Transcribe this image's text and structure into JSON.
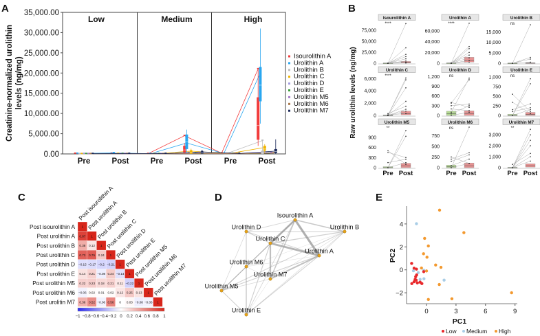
{
  "panel_labels": [
    "A",
    "B",
    "C",
    "D",
    "E"
  ],
  "chart_data": [
    {
      "panel": "A",
      "type": "box+line",
      "ylabel_lines": [
        "Creatinine-normalized urolithin",
        "levels (ng/mg)"
      ],
      "ylim": [
        0,
        35000
      ],
      "yticks": [
        0,
        5000,
        10000,
        15000,
        20000,
        25000,
        30000,
        35000
      ],
      "ytick_labels": [
        "0.00",
        "5,000.00",
        "10,000.00",
        "15,000.00",
        "20,000.00",
        "25,000.00",
        "30,000.00",
        "35,000.00"
      ],
      "facets": [
        "Low",
        "Medium",
        "High"
      ],
      "xticks": [
        "Pre",
        "Post"
      ],
      "series": [
        {
          "name": "Isourolithin A",
          "color": "#f23b3b",
          "means": [
            100,
            150,
            50,
            4500,
            200,
            21000
          ]
        },
        {
          "name": "Urolithin A",
          "color": "#2aa7f0",
          "means": [
            100,
            250,
            50,
            2700,
            100,
            20000
          ]
        },
        {
          "name": "Urolithin B",
          "color": "#bdbdbd",
          "means": [
            0,
            50,
            0,
            300,
            50,
            3300
          ]
        },
        {
          "name": "Urolithin C",
          "color": "#f0b400",
          "means": [
            20,
            80,
            20,
            700,
            50,
            1600
          ]
        },
        {
          "name": "Urolithin D",
          "color": "#a29bdf",
          "means": [
            50,
            50,
            50,
            150,
            50,
            200
          ]
        },
        {
          "name": "Urolithin E",
          "color": "#3a9c3a",
          "means": [
            30,
            60,
            30,
            100,
            50,
            150
          ]
        },
        {
          "name": "Urolithin M5",
          "color": "#a77bc9",
          "means": [
            20,
            40,
            20,
            150,
            50,
            300
          ]
        },
        {
          "name": "Urolithin M6",
          "color": "#a9784a",
          "means": [
            20,
            40,
            20,
            100,
            40,
            200
          ]
        },
        {
          "name": "Urolithin M7",
          "color": "#1c2a5a",
          "means": [
            50,
            80,
            80,
            500,
            100,
            700
          ]
        }
      ],
      "boxes": [
        {
          "group": 3,
          "series": 0,
          "lo": 100,
          "q1": 400,
          "median": 1000,
          "q3": 2000,
          "hi": 2700
        },
        {
          "group": 3,
          "series": 1,
          "lo": 300,
          "q1": 1200,
          "median": 3000,
          "q3": 4800,
          "hi": 6000
        },
        {
          "group": 3,
          "series": 3,
          "lo": 0,
          "q1": 100,
          "median": 300,
          "q3": 800,
          "hi": 1300
        },
        {
          "group": 3,
          "series": 8,
          "lo": 0,
          "q1": 100,
          "median": 300,
          "q3": 600,
          "hi": 1000
        },
        {
          "group": 5,
          "series": 0,
          "lo": 2000,
          "q1": 3500,
          "median": 7000,
          "q3": 14000,
          "hi": 21000
        },
        {
          "group": 5,
          "series": 1,
          "lo": 7500,
          "q1": 13000,
          "median": 17000,
          "q3": 21500,
          "hi": 31000
        },
        {
          "group": 5,
          "series": 2,
          "lo": 0,
          "q1": 0,
          "median": 200,
          "q3": 800,
          "hi": 3300
        },
        {
          "group": 5,
          "series": 3,
          "lo": 300,
          "q1": 800,
          "median": 1200,
          "q3": 2000,
          "hi": 2400
        },
        {
          "group": 5,
          "series": 8,
          "lo": 0,
          "q1": 200,
          "median": 600,
          "q3": 1200,
          "hi": 3600
        }
      ]
    },
    {
      "panel": "B",
      "type": "box+paired-lines",
      "ylabel": "Raw urolithin levels (ng/mg)",
      "xticks": [
        "Pre",
        "Post"
      ],
      "pre_color": "#a9d47f",
      "post_color": "#e57f7f",
      "panels": [
        {
          "title": "Isourolithin A",
          "sig": "****",
          "yticks": [
            0,
            25000,
            50000,
            75000
          ],
          "ymax": 92000,
          "pre": [
            0,
            100,
            300
          ],
          "post": [
            500,
            2000,
            4000
          ],
          "pairs": [
            [
              0,
              90000
            ],
            [
              0,
              35000
            ],
            [
              0,
              20000
            ],
            [
              0,
              15000
            ],
            [
              0,
              10000
            ],
            [
              0,
              5000
            ],
            [
              0,
              2000
            ],
            [
              0,
              500
            ]
          ]
        },
        {
          "title": "Urolithin A",
          "sig": "****",
          "yticks": [
            0,
            20000,
            40000,
            60000
          ],
          "ymax": 75000,
          "pre": [
            0,
            200,
            500
          ],
          "post": [
            2000,
            5000,
            11000
          ],
          "pairs": [
            [
              0,
              74000
            ],
            [
              0,
              31000
            ],
            [
              0,
              27000
            ],
            [
              0,
              20000
            ],
            [
              500,
              15000
            ],
            [
              0,
              10000
            ],
            [
              0,
              5000
            ],
            [
              0,
              2000
            ]
          ]
        },
        {
          "title": "Urolithin B",
          "sig": "ns",
          "yticks": [
            0,
            5000,
            10000,
            15000
          ],
          "ymax": 19500,
          "pre": [
            0,
            0,
            50
          ],
          "post": [
            0,
            50,
            200
          ],
          "pairs": [
            [
              0,
              18500
            ],
            [
              0,
              2800
            ],
            [
              0,
              2000
            ],
            [
              0,
              500
            ]
          ]
        },
        {
          "title": "Urolithin C",
          "sig": "****",
          "yticks": [
            0,
            2000,
            4000,
            6000
          ],
          "ymax": 6600,
          "pre": [
            0,
            20,
            80
          ],
          "post": [
            100,
            300,
            700
          ],
          "pairs": [
            [
              0,
              6100
            ],
            [
              0,
              5800
            ],
            [
              0,
              4500
            ],
            [
              0,
              2300
            ],
            [
              300,
              1500
            ],
            [
              0,
              1000
            ],
            [
              0,
              700
            ],
            [
              100,
              300
            ]
          ]
        },
        {
          "title": "Urolithin D",
          "sig": "ns",
          "yticks": [
            0,
            300,
            600,
            900,
            1200
          ],
          "ymax": 1250,
          "pre": [
            0,
            50,
            130
          ],
          "post": [
            0,
            60,
            140
          ],
          "pairs": [
            [
              100,
              1150
            ],
            [
              380,
              1100
            ],
            [
              400,
              250
            ],
            [
              300,
              350
            ],
            [
              200,
              150
            ],
            [
              50,
              300
            ],
            [
              0,
              100
            ]
          ]
        },
        {
          "title": "Urolithin E",
          "sig": "ns",
          "yticks": [
            0,
            250,
            500,
            750,
            1000
          ],
          "ymax": 1050,
          "pre": [
            0,
            0,
            30
          ],
          "post": [
            0,
            30,
            80
          ],
          "pairs": [
            [
              0,
              950
            ],
            [
              0,
              820
            ],
            [
              550,
              100
            ],
            [
              340,
              50
            ],
            [
              150,
              300
            ],
            [
              100,
              200
            ],
            [
              0,
              150
            ]
          ]
        },
        {
          "title": "Urolithin M5",
          "sig": "**",
          "yticks": [
            0,
            300,
            600,
            900
          ],
          "ymax": 1200,
          "pre": [
            0,
            0,
            30
          ],
          "post": [
            0,
            50,
            130
          ],
          "pairs": [
            [
              0,
              1100
            ],
            [
              0,
              930
            ],
            [
              500,
              100
            ],
            [
              450,
              300
            ],
            [
              150,
              250
            ],
            [
              0,
              150
            ]
          ]
        },
        {
          "title": "Urolithin M6",
          "sig": "ns",
          "yticks": [
            0,
            250,
            500,
            750
          ],
          "ymax": 950,
          "pre": [
            0,
            20,
            60
          ],
          "post": [
            0,
            40,
            110
          ],
          "pairs": [
            [
              0,
              950
            ],
            [
              250,
              100
            ],
            [
              200,
              350
            ],
            [
              150,
              300
            ],
            [
              50,
              200
            ],
            [
              0,
              100
            ]
          ]
        },
        {
          "title": "Urolithin M7",
          "sig": "**",
          "yticks": [
            0,
            1000,
            2000,
            3000
          ],
          "ymax": 3700,
          "pre": [
            0,
            0,
            30
          ],
          "post": [
            50,
            150,
            350
          ],
          "pairs": [
            [
              0,
              3500
            ],
            [
              0,
              3000
            ],
            [
              0,
              2500
            ],
            [
              0,
              2000
            ],
            [
              300,
              1300
            ],
            [
              0,
              1000
            ],
            [
              0,
              600
            ]
          ]
        }
      ]
    },
    {
      "panel": "C",
      "type": "heatmap",
      "row_labels": [
        "Post isourolithin A",
        "Post urolithin A",
        "Post urolithin B",
        "Post urolithin C",
        "Post urolithin D",
        "Post urolithin E",
        "Post urolithin M5",
        "Post urolithin M6",
        "Post urolitin M7"
      ],
      "col_labels": [
        "Post isourolithin A",
        "Post urolithin A",
        "Post urolithin B",
        "Post urolithin C",
        "Post urolithin D",
        "Post urolithin E",
        "Post urolithin M5",
        "Post urolithin M6",
        "Post urolithin M7"
      ],
      "matrix_lower": [
        [
          1
        ],
        [
          0.87,
          1
        ],
        [
          0.38,
          0.12,
          1
        ],
        [
          0.73,
          0.75,
          0.24,
          1
        ],
        [
          -0.15,
          -0.17,
          -0.2,
          -0.21,
          1
        ],
        [
          0.14,
          0.21,
          -0.08,
          0.24,
          -0.14,
          1
        ],
        [
          0.22,
          0.23,
          0.18,
          0.21,
          0.11,
          -0.22,
          1
        ],
        [
          -0.06,
          0.02,
          0.01,
          0.02,
          0.12,
          0.25,
          0.13,
          1
        ],
        [
          0.36,
          0.52,
          -0.06,
          0.56,
          0,
          0.03,
          -0.08,
          -0.06,
          1
        ]
      ],
      "colorbar_ticks": [
        "−1",
        "−0.8",
        "−0.6",
        "−0.4",
        "−0.2",
        "0",
        "0.2",
        "0.4",
        "0.6",
        "0.8",
        "1"
      ],
      "colorscale": {
        "low": "#2b2bef",
        "mid": "#ffffff",
        "high": "#d7261b"
      }
    },
    {
      "panel": "D",
      "type": "network",
      "nodes": [
        "Isourolithin A",
        "Urolithin A",
        "Urolithin B",
        "Urolithin C",
        "Urolithin D",
        "Urolithin E",
        "Urolithin M5",
        "Urolithin M6",
        "Urolithin M7"
      ],
      "edge_weights": "correlation matrix of panel C",
      "node_color": "#e8a317",
      "label_color": "#2a3db5"
    },
    {
      "panel": "E",
      "type": "scatter",
      "xlabel": "PC1",
      "ylabel": "PC2",
      "xticks": [
        0,
        3,
        6,
        9
      ],
      "yticks": [
        -2,
        0,
        2,
        4
      ],
      "xlim": [
        -2,
        9.3
      ],
      "ylim": [
        -2.9,
        5.5
      ],
      "legend": {
        "position": "bottom",
        "items": [
          {
            "label": "Low",
            "color": "#e8282b"
          },
          {
            "label": "Medium",
            "color": "#a9cde6"
          },
          {
            "label": "High",
            "color": "#f3992f"
          }
        ]
      },
      "points": {
        "High": [
          [
            1.33,
            5.2
          ],
          [
            3.8,
            3.24
          ],
          [
            -0.19,
            2.74
          ],
          [
            0.19,
            2.08
          ],
          [
            -0.3,
            1.4
          ],
          [
            0.05,
            1.1
          ],
          [
            0.93,
            0.42
          ],
          [
            1.47,
            0.22
          ],
          [
            -0.51,
            0.16
          ],
          [
            0,
            -0.1
          ],
          [
            1.3,
            -1.28
          ],
          [
            8.65,
            -2
          ],
          [
            0.19,
            -2.58
          ],
          [
            2.58,
            -2.52
          ]
        ],
        "Medium": [
          [
            -1.02,
            4.02
          ],
          [
            -1.33,
            -0.08
          ],
          [
            -0.84,
            -0.24
          ],
          [
            -0.28,
            -0.04
          ],
          [
            -0.65,
            -0.84
          ],
          [
            -0.26,
            -0.78
          ],
          [
            1.79,
            -0.9
          ]
        ],
        "Low": [
          [
            -1.51,
            0.56
          ],
          [
            -1.26,
            0.14
          ],
          [
            -1.02,
            0.06
          ],
          [
            -1,
            -0.44
          ],
          [
            -1.1,
            -0.6
          ],
          [
            -1.16,
            -0.84
          ],
          [
            -1.26,
            -1.04
          ],
          [
            -1.49,
            -1.2
          ],
          [
            -0.93,
            -1.14
          ],
          [
            -0.65,
            -1.08
          ],
          [
            -0.47,
            -1.2
          ],
          [
            -1.05,
            -0.9
          ],
          [
            -0.28,
            -0.16
          ]
        ]
      }
    }
  ]
}
